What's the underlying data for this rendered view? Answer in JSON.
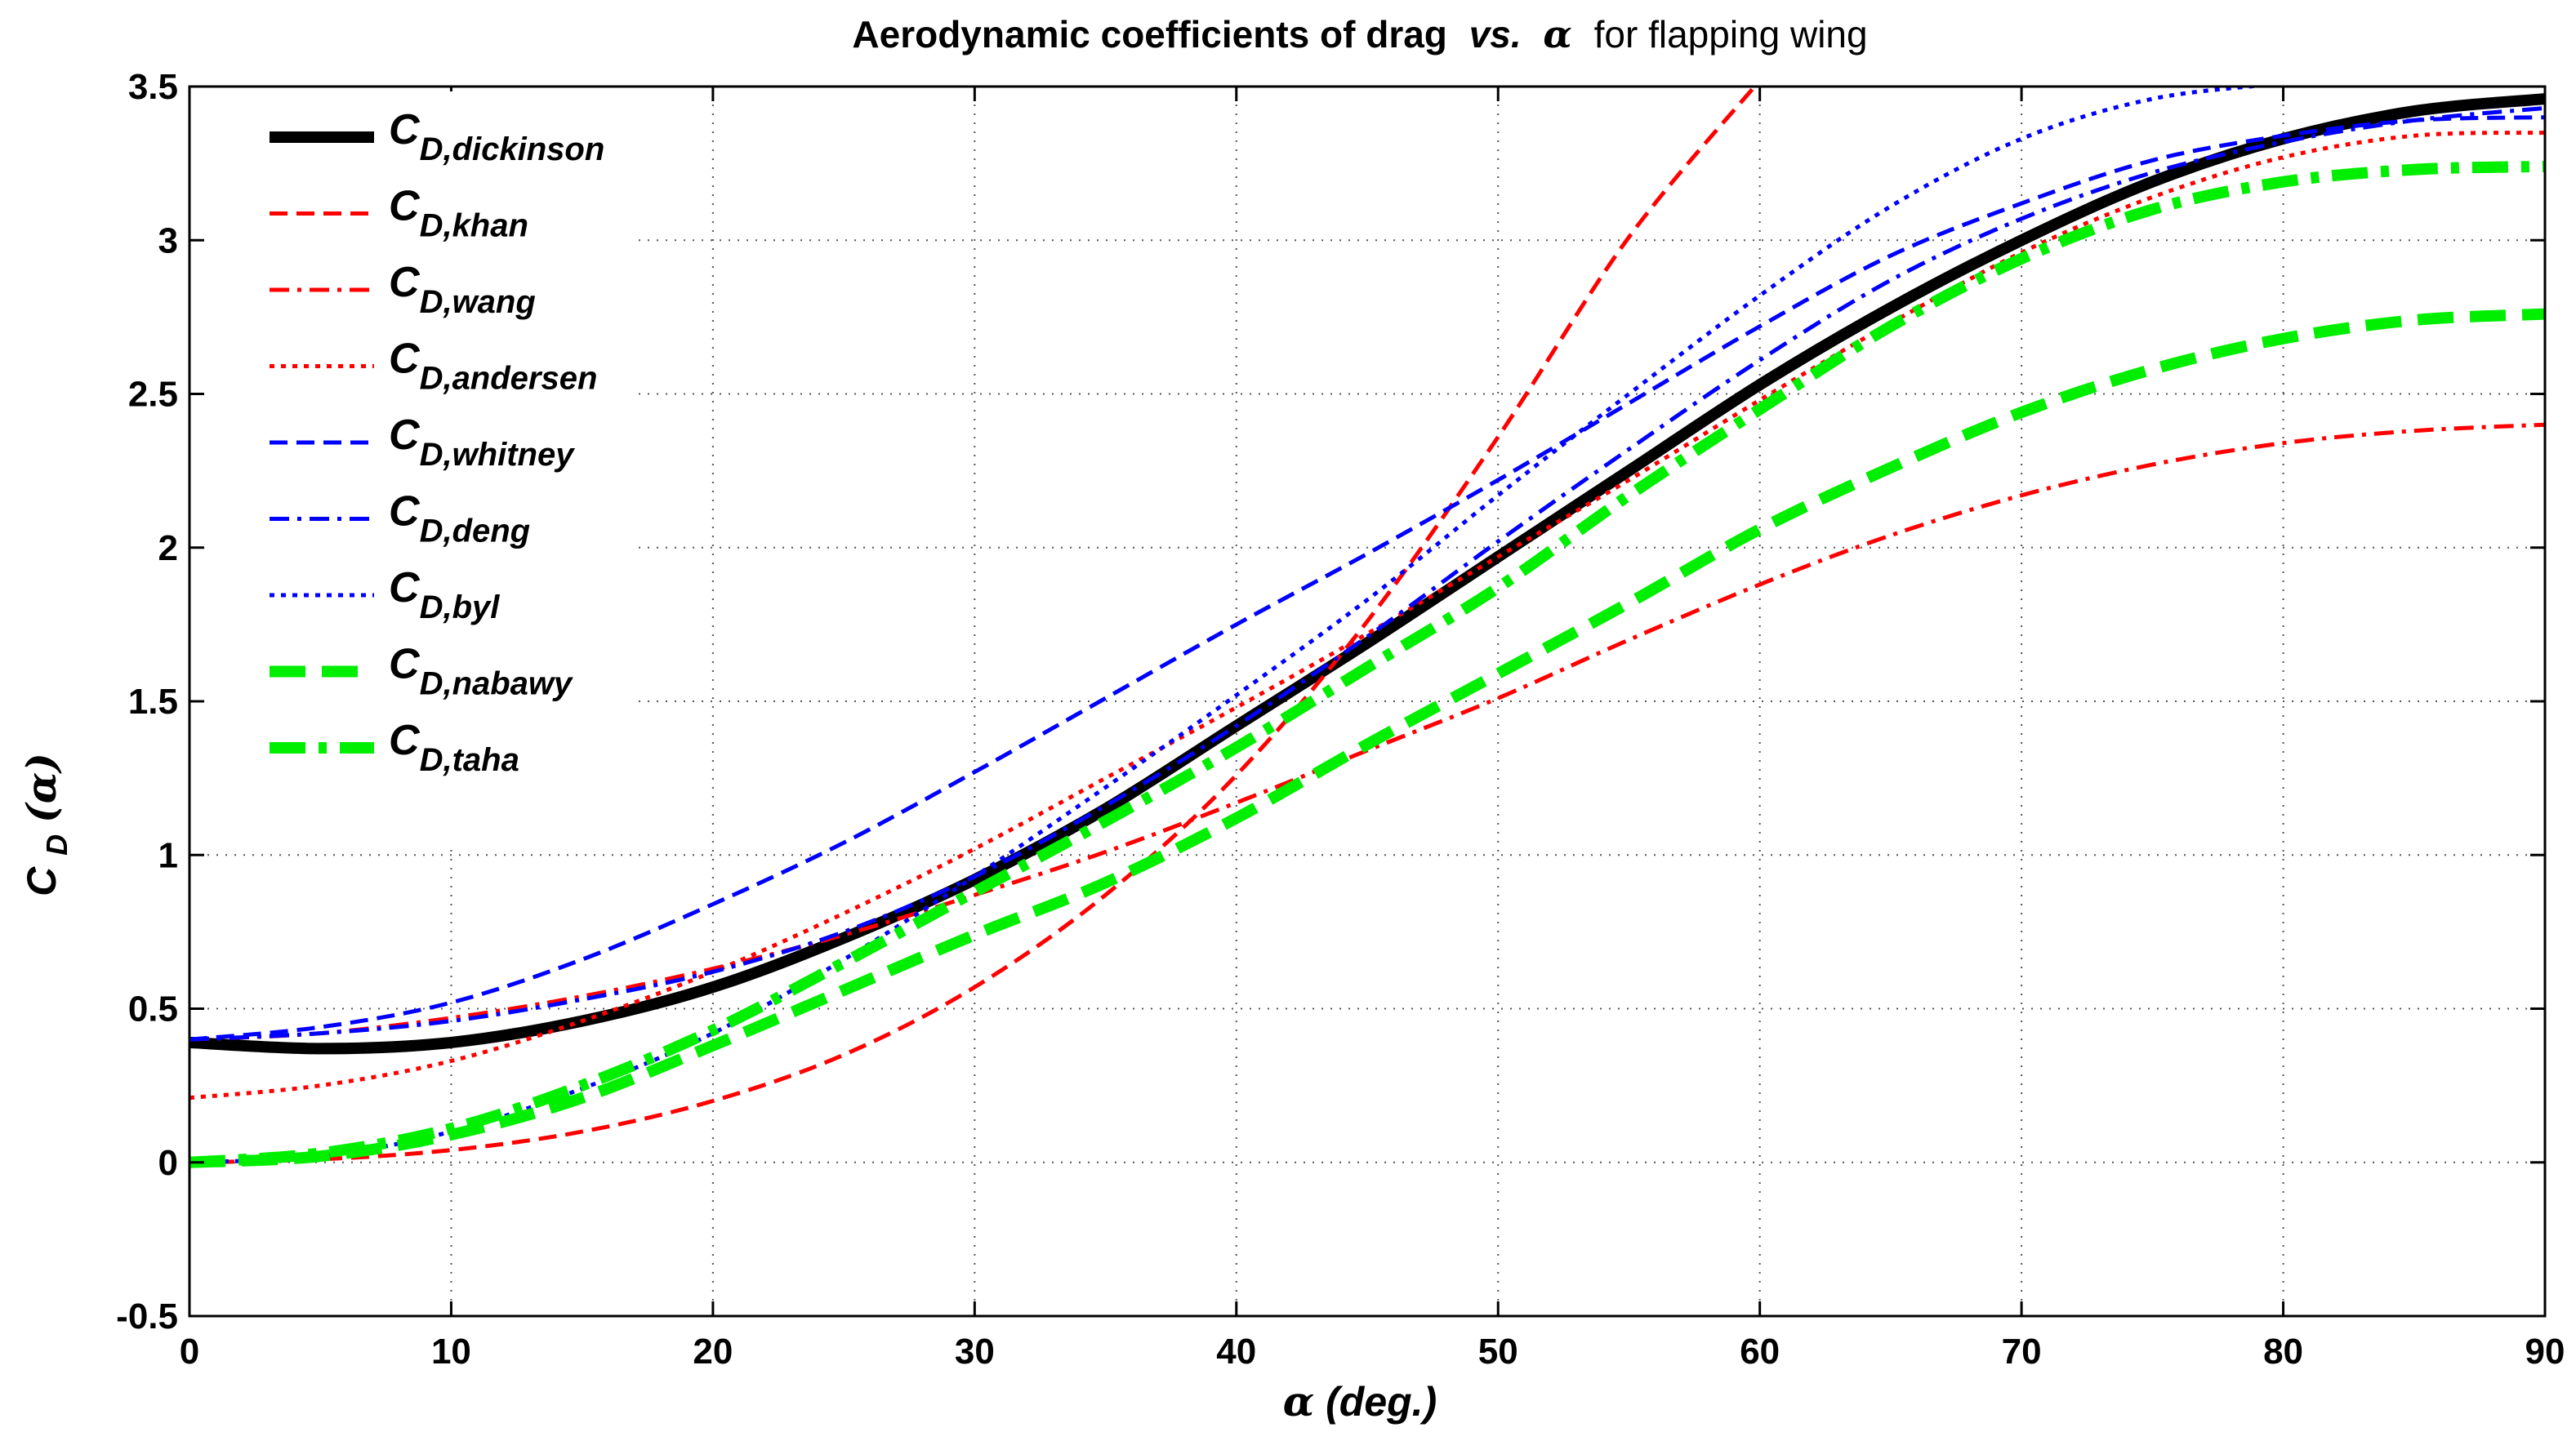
{
  "chart_data": {
    "type": "line",
    "title_parts": {
      "main": "Aerodynamic coefficients of drag",
      "vs": "vs.",
      "alpha": "α",
      "tail": "for flapping wing"
    },
    "xlabel": {
      "symbol": "α",
      "unit": " (deg.)"
    },
    "ylabel": {
      "base": "C",
      "sub": "D",
      "arg": " (α)"
    },
    "xlim": [
      0,
      90
    ],
    "ylim": [
      -0.5,
      3.5
    ],
    "xticks": [
      0,
      10,
      20,
      30,
      40,
      50,
      60,
      70,
      80,
      90
    ],
    "yticks": [
      -0.5,
      0,
      0.5,
      1,
      1.5,
      2,
      2.5,
      3,
      3.5
    ],
    "ytick_labels": [
      "-0.5",
      "0",
      "0.5",
      "1",
      "1.5",
      "2",
      "2.5",
      "3",
      "3.5"
    ],
    "grid": true,
    "legend_position": "top-left",
    "series": [
      {
        "name": "C",
        "subscript": "D,dickinson",
        "color": "#000000",
        "style": "solid",
        "weight": "thick",
        "x": [
          0,
          5,
          10,
          15,
          20,
          25,
          30,
          35,
          40,
          45,
          50,
          55,
          60,
          65,
          70,
          75,
          80,
          85,
          90
        ],
        "y": [
          0.39,
          0.37,
          0.39,
          0.46,
          0.57,
          0.73,
          0.92,
          1.15,
          1.42,
          1.69,
          1.97,
          2.25,
          2.53,
          2.78,
          3.0,
          3.19,
          3.33,
          3.42,
          3.46
        ]
      },
      {
        "name": "C",
        "subscript": "D,khan",
        "color": "#ff0000",
        "style": "dashed",
        "weight": "thin",
        "x": [
          0,
          5,
          10,
          15,
          20,
          25,
          30,
          35,
          40,
          45,
          50,
          55,
          60
        ],
        "y": [
          0.0,
          0.01,
          0.04,
          0.1,
          0.2,
          0.35,
          0.57,
          0.87,
          1.26,
          1.76,
          2.36,
          3.01,
          3.52
        ]
      },
      {
        "name": "C",
        "subscript": "D,wang",
        "color": "#ff0000",
        "style": "dashdot",
        "weight": "thin",
        "x": [
          0,
          5,
          10,
          15,
          20,
          25,
          30,
          35,
          40,
          45,
          50,
          55,
          60,
          65,
          70,
          75,
          80,
          85,
          90
        ],
        "y": [
          0.4,
          0.42,
          0.47,
          0.54,
          0.63,
          0.74,
          0.87,
          1.01,
          1.17,
          1.34,
          1.51,
          1.7,
          1.88,
          2.04,
          2.17,
          2.27,
          2.34,
          2.38,
          2.4
        ]
      },
      {
        "name": "C",
        "subscript": "D,andersen",
        "color": "#ff0000",
        "style": "dotted",
        "weight": "thin",
        "x": [
          0,
          5,
          10,
          15,
          20,
          25,
          30,
          35,
          40,
          45,
          50,
          55,
          60,
          65,
          70,
          75,
          80,
          85,
          90
        ],
        "y": [
          0.21,
          0.25,
          0.33,
          0.46,
          0.62,
          0.81,
          1.02,
          1.25,
          1.48,
          1.72,
          1.97,
          2.22,
          2.48,
          2.73,
          2.96,
          3.14,
          3.27,
          3.34,
          3.35
        ]
      },
      {
        "name": "C",
        "subscript": "D,whitney",
        "color": "#0000ff",
        "style": "dashed",
        "weight": "thin",
        "x": [
          0,
          5,
          10,
          15,
          20,
          25,
          30,
          35,
          40,
          45,
          50,
          55,
          60,
          65,
          70,
          75,
          80,
          85,
          90
        ],
        "y": [
          0.4,
          0.44,
          0.52,
          0.66,
          0.84,
          1.04,
          1.27,
          1.51,
          1.75,
          1.98,
          2.22,
          2.47,
          2.72,
          2.95,
          3.12,
          3.26,
          3.34,
          3.39,
          3.4
        ]
      },
      {
        "name": "C",
        "subscript": "D,deng",
        "color": "#0000ff",
        "style": "dashdot",
        "weight": "thin",
        "x": [
          0,
          5,
          10,
          15,
          20,
          25,
          30,
          35,
          40,
          45,
          50,
          55,
          60,
          65,
          70,
          75,
          80,
          85,
          90
        ],
        "y": [
          0.4,
          0.42,
          0.46,
          0.53,
          0.62,
          0.75,
          0.93,
          1.16,
          1.42,
          1.71,
          2.02,
          2.32,
          2.61,
          2.87,
          3.07,
          3.22,
          3.32,
          3.39,
          3.43
        ]
      },
      {
        "name": "C",
        "subscript": "D,byl",
        "color": "#0000ff",
        "style": "dotted",
        "weight": "thin",
        "x": [
          0,
          5,
          10,
          15,
          20,
          25,
          30,
          35,
          40,
          45,
          50,
          55,
          60,
          65,
          70,
          75,
          80
        ],
        "y": [
          0.0,
          0.02,
          0.1,
          0.24,
          0.42,
          0.66,
          0.93,
          1.22,
          1.52,
          1.83,
          2.17,
          2.5,
          2.82,
          3.11,
          3.33,
          3.46,
          3.51
        ]
      },
      {
        "name": "C",
        "subscript": "D,nabawy",
        "color": "#00ee00",
        "style": "dashed",
        "weight": "thick",
        "x": [
          0,
          5,
          10,
          15,
          20,
          25,
          30,
          35,
          40,
          45,
          50,
          55,
          60,
          65,
          70,
          75,
          80,
          85,
          90
        ],
        "y": [
          0.0,
          0.02,
          0.09,
          0.21,
          0.38,
          0.56,
          0.74,
          0.91,
          1.12,
          1.36,
          1.59,
          1.82,
          2.06,
          2.26,
          2.44,
          2.58,
          2.68,
          2.74,
          2.76
        ]
      },
      {
        "name": "C",
        "subscript": "D,taha",
        "color": "#00ee00",
        "style": "dashdot",
        "weight": "thick",
        "x": [
          0,
          5,
          10,
          15,
          20,
          25,
          30,
          35,
          40,
          45,
          50,
          55,
          60,
          65,
          70,
          75,
          80,
          85,
          90
        ],
        "y": [
          0.0,
          0.03,
          0.11,
          0.25,
          0.43,
          0.65,
          0.88,
          1.11,
          1.35,
          1.61,
          1.87,
          2.17,
          2.45,
          2.72,
          2.94,
          3.1,
          3.19,
          3.23,
          3.24
        ]
      }
    ]
  }
}
